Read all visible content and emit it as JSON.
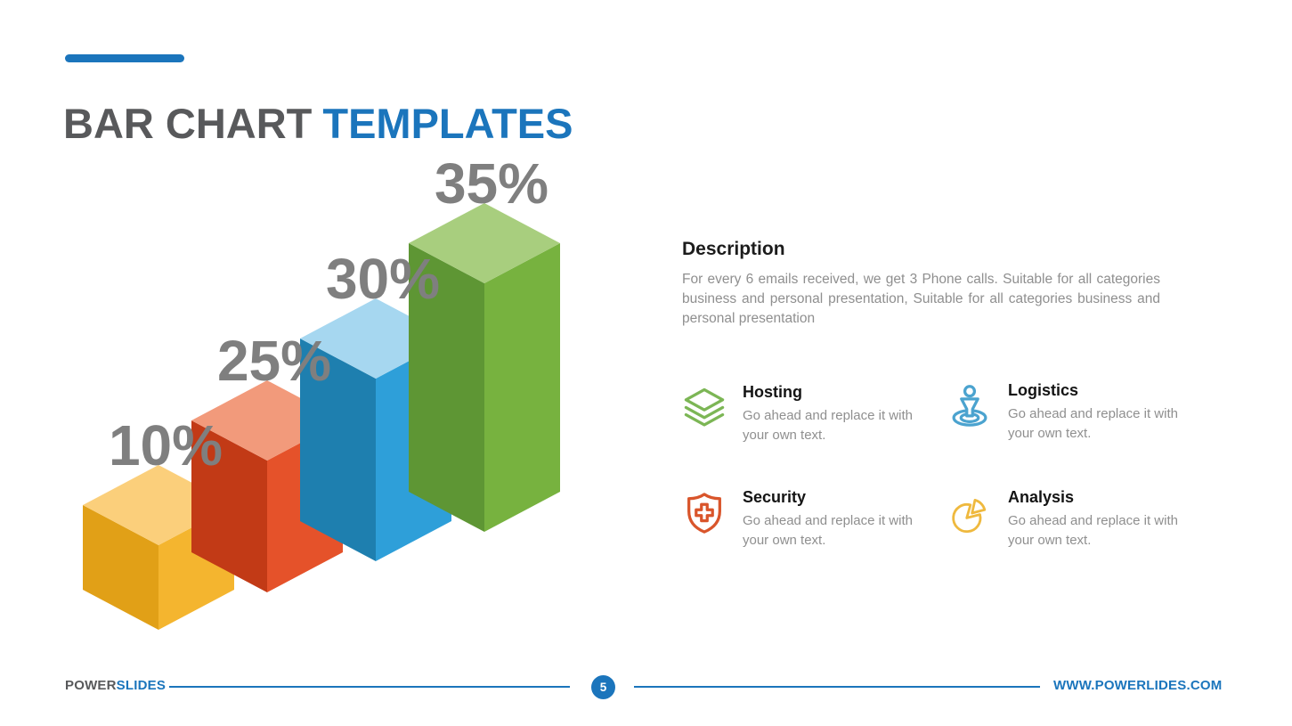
{
  "slide": {
    "title": {
      "primary": "BAR CHART",
      "secondary": "TEMPLATES"
    },
    "accent_color": "#1B75BC"
  },
  "chart_data": {
    "type": "bar",
    "style": "3d-isometric-columns",
    "categories": [
      "bar-1",
      "bar-2",
      "bar-3",
      "bar-4"
    ],
    "values": [
      10,
      25,
      30,
      35
    ],
    "labels": [
      "10%",
      "25%",
      "30%",
      "35%"
    ],
    "label_color": "#7F7F7F",
    "title": "",
    "xlabel": "",
    "ylabel": "",
    "grid": false,
    "legend": false,
    "bar_colors": [
      {
        "name": "yellow",
        "top": "#FBCF7B",
        "left": "#E1A017",
        "right": "#F4B52F"
      },
      {
        "name": "orange",
        "top": "#F29A7B",
        "left": "#C23A16",
        "right": "#E5522A"
      },
      {
        "name": "blue",
        "top": "#A6D7F0",
        "left": "#1E7FAF",
        "right": "#2E9FD9"
      },
      {
        "name": "green",
        "top": "#A8CE7E",
        "left": "#5E9634",
        "right": "#77B23F"
      }
    ]
  },
  "description": {
    "heading": "Description",
    "body": "For every 6 emails received, we get 3 Phone calls. Suitable for all categories business and personal presentation, Suitable for all categories business and personal presentation"
  },
  "features": [
    {
      "title": "Hosting",
      "body": "Go ahead and replace it with your own text.",
      "icon": "layers-icon",
      "color": "#7CB655"
    },
    {
      "title": "Logistics",
      "body": "Go ahead and replace it with your own text.",
      "icon": "location-person-icon",
      "color": "#4BA3CF"
    },
    {
      "title": "Security",
      "body": "Go ahead and replace it with your own text.",
      "icon": "shield-cross-icon",
      "color": "#D9552B"
    },
    {
      "title": "Analysis",
      "body": "Go ahead and replace it with your own text.",
      "icon": "pie-chart-icon",
      "color": "#EFB93E"
    }
  ],
  "footer": {
    "brand": {
      "primary": "POWER",
      "secondary": "SLIDES"
    },
    "page_number": "5",
    "website": "WWW.POWERLIDES.COM"
  }
}
